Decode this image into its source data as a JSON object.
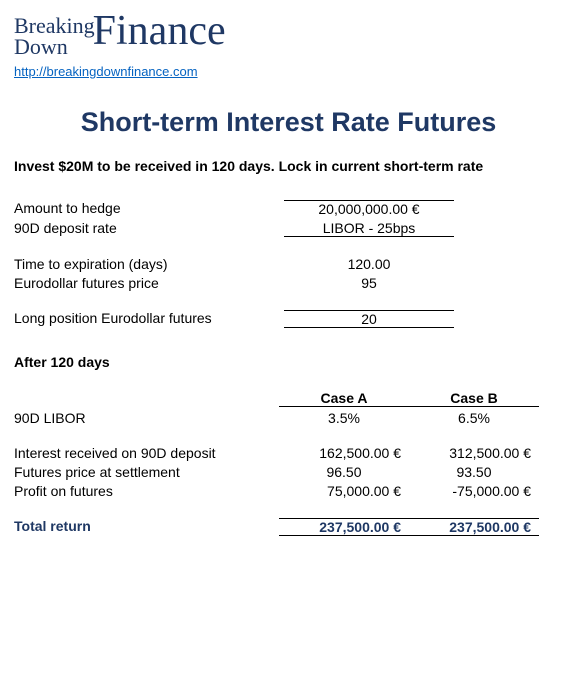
{
  "logo": {
    "breaking": "Breaking",
    "down": "Down",
    "finance": "Finance"
  },
  "site_url": "http://breakingdownfinance.com",
  "title": "Short-term Interest Rate Futures",
  "scenario": "Invest $20M to be received in 120 days. Lock in current short-term rate",
  "params": {
    "amount_label": "Amount to hedge",
    "amount_value": "20,000,000.00 €",
    "rate_label": "90D deposit rate",
    "rate_value": "LIBOR - 25bps",
    "tte_label": "Time to expiration (days)",
    "tte_value": "120.00",
    "edf_label": "Eurodollar futures price",
    "edf_value": "95",
    "long_label": "Long position Eurodollar futures",
    "long_value": "20"
  },
  "after_heading": "After 120 days",
  "cases": {
    "headerA": "Case A",
    "headerB": "Case B",
    "libor_label": "90D LIBOR",
    "libor_a": "3.5%",
    "libor_b": "6.5%",
    "int_label": "Interest received on 90D deposit",
    "int_a": "162,500.00 €",
    "int_b": "312,500.00 €",
    "fp_label": "Futures price at settlement",
    "fp_a": "96.50",
    "fp_b": "93.50",
    "profit_label": "Profit on futures",
    "profit_a": "75,000.00 €",
    "profit_b": "-75,000.00 €",
    "total_label": "Total return",
    "total_a": "237,500.00 €",
    "total_b": "237,500.00 €"
  }
}
